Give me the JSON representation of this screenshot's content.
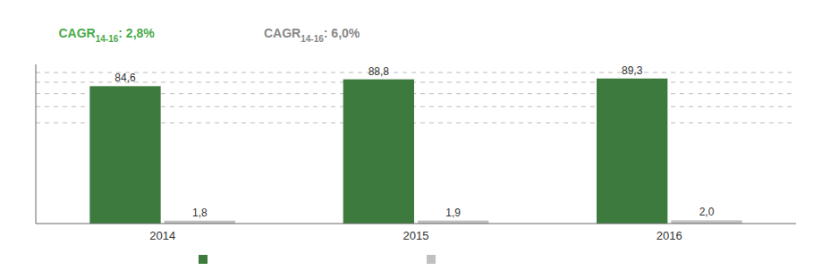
{
  "chart_data": {
    "type": "bar",
    "categories": [
      "2014",
      "2015",
      "2016"
    ],
    "series": [
      {
        "color": "#3d7a3d",
        "values": [
          84.6,
          88.8,
          89.3
        ],
        "value_labels": [
          "84,6",
          "88,8",
          "89,3"
        ]
      },
      {
        "color": "#c0c0c0",
        "values": [
          1.8,
          1.9,
          2.0
        ],
        "value_labels": [
          "1,8",
          "1,9",
          "2,0"
        ]
      }
    ],
    "ylim": [
      0,
      98
    ],
    "yticks": [
      62,
      72,
      80,
      87,
      93
    ],
    "grid": true,
    "tick_labels": "x",
    "data_labels": true,
    "legend": "bottom",
    "annotations": [
      {
        "parts": [
          "CAGR",
          "14-16",
          ": 2,8%"
        ],
        "color": "#4aaa4a"
      },
      {
        "parts": [
          "CAGR",
          "14-16",
          ": 6,0%"
        ],
        "color": "#888888"
      }
    ]
  }
}
